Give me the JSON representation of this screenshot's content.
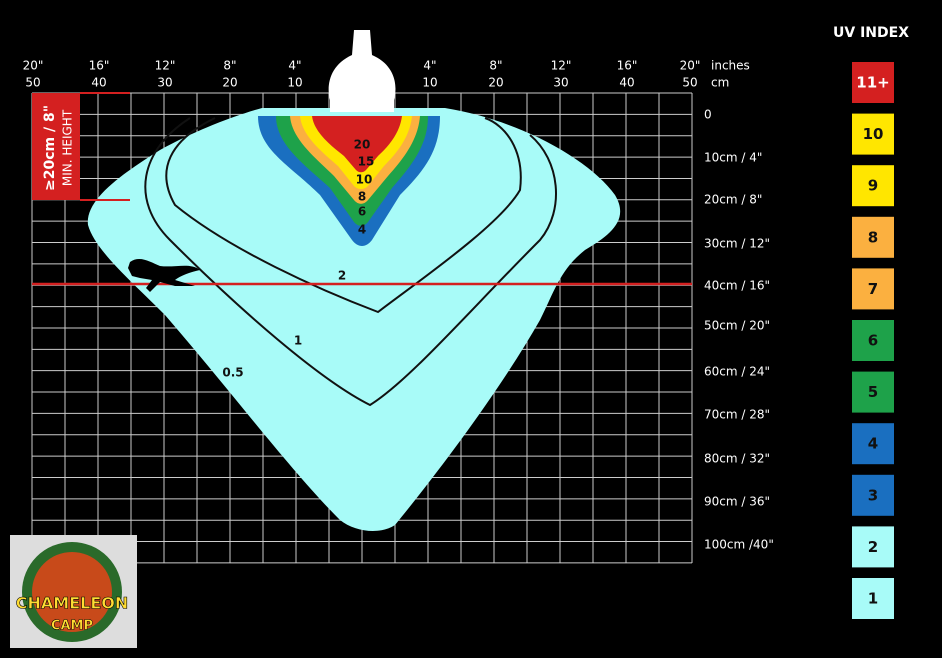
{
  "top_axis": {
    "inches": [
      "20\"",
      "16\"",
      "12\"",
      "8\"",
      "4\"",
      "4\"",
      "8\"",
      "12\"",
      "16\"",
      "20\""
    ],
    "inches_unit": "inches",
    "cm": [
      "50",
      "40",
      "30",
      "20",
      "10",
      "10",
      "20",
      "30",
      "40",
      "50"
    ],
    "cm_unit": "cm"
  },
  "distance_labels": [
    "0",
    "10cm / 4\"",
    "20cm / 8\"",
    "30cm / 12\"",
    "40cm / 16\"",
    "50cm / 20\"",
    "60cm / 24\"",
    "70cm / 28\"",
    "80cm / 32\"",
    "90cm / 36\"",
    "100cm /40\""
  ],
  "legend": {
    "title": "UV INDEX",
    "items": [
      {
        "label": "11+",
        "color": "#d42020"
      },
      {
        "label": "10",
        "color": "#ffe600"
      },
      {
        "label": "9",
        "color": "#ffe600"
      },
      {
        "label": "8",
        "color": "#fbb040"
      },
      {
        "label": "7",
        "color": "#fbb040"
      },
      {
        "label": "6",
        "color": "#1ea24a"
      },
      {
        "label": "5",
        "color": "#1ea24a"
      },
      {
        "label": "4",
        "color": "#1a6fc0"
      },
      {
        "label": "3",
        "color": "#1a6fc0"
      },
      {
        "label": "2",
        "color": "#a8fbf8"
      },
      {
        "label": "1",
        "color": "#a8fbf8"
      }
    ]
  },
  "contours": [
    "20",
    "15",
    "10",
    "8",
    "6",
    "4",
    "2",
    "1",
    "0.5"
  ],
  "min_height": {
    "value": "≥20cm / 8\"",
    "label": "MIN. HEIGHT"
  },
  "logo": {
    "line1": "CHAMELEON",
    "line2": "CAMP"
  }
}
